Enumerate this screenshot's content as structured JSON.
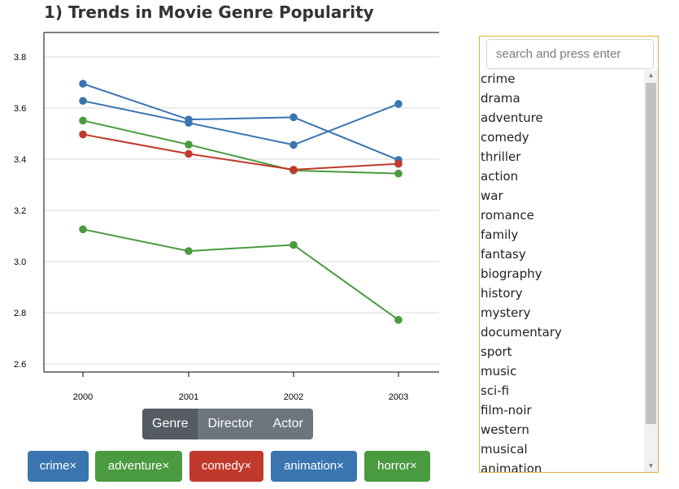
{
  "title": "1) Trends in Movie Genre Popularity",
  "chart_data": {
    "type": "line",
    "x": [
      "2000",
      "2001",
      "2002",
      "2003"
    ],
    "ylim": [
      2.6,
      3.8
    ],
    "yticks": [
      "2.6",
      "2.8",
      "3.0",
      "3.2",
      "3.4",
      "3.6",
      "3.8"
    ],
    "grid": true,
    "series": [
      {
        "name": "crime",
        "color": "#3a75b0",
        "values": [
          3.695,
          3.555,
          3.564,
          3.397
        ]
      },
      {
        "name": "animation",
        "color": "#3a75b0",
        "values": [
          3.628,
          3.542,
          3.456,
          3.616
        ]
      },
      {
        "name": "adventure",
        "color": "#4a9a3f",
        "values": [
          3.551,
          3.457,
          3.356,
          3.344
        ]
      },
      {
        "name": "comedy",
        "color": "#c0392b",
        "values": [
          3.497,
          3.421,
          3.359,
          3.382
        ]
      },
      {
        "name": "horror",
        "color": "#4a9a3f",
        "values": [
          3.126,
          3.041,
          3.065,
          2.772
        ]
      }
    ]
  },
  "modes": {
    "genre": "Genre",
    "director": "Director",
    "actor": "Actor"
  },
  "selected": [
    {
      "label": "crime×",
      "color": "#3a75b0"
    },
    {
      "label": "adventure×",
      "color": "#4a9a3f"
    },
    {
      "label": "comedy×",
      "color": "#c0392b"
    },
    {
      "label": "animation×",
      "color": "#3a75b0"
    },
    {
      "label": "horror×",
      "color": "#4a9a3f"
    }
  ],
  "search": {
    "placeholder": "search and press enter"
  },
  "genre_list": [
    "crime",
    "drama",
    "adventure",
    "comedy",
    "thriller",
    "action",
    "war",
    "romance",
    "family",
    "fantasy",
    "biography",
    "history",
    "mystery",
    "documentary",
    "sport",
    "music",
    "sci-fi",
    "film-noir",
    "western",
    "musical",
    "animation"
  ]
}
